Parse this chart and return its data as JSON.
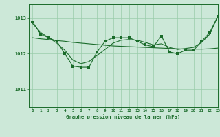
{
  "title": "Graphe pression niveau de la mer (hPa)",
  "background_color": "#cce8d8",
  "grid_color": "#99ccaa",
  "line_color": "#1a6b2a",
  "xlim": [
    -0.5,
    23
  ],
  "ylim": [
    1010.5,
    1013.4
  ],
  "yticks": [
    1011,
    1012,
    1013
  ],
  "xticks": [
    0,
    1,
    2,
    3,
    4,
    5,
    6,
    7,
    8,
    9,
    10,
    11,
    12,
    13,
    14,
    15,
    16,
    17,
    18,
    19,
    20,
    21,
    22,
    23
  ],
  "jagged": [
    1012.9,
    1012.55,
    1012.45,
    1012.35,
    1012.0,
    1011.65,
    1011.62,
    1011.62,
    1012.05,
    1012.35,
    1012.45,
    1012.45,
    1012.45,
    1012.35,
    1012.25,
    1012.2,
    1012.5,
    1012.05,
    1012.0,
    1012.1,
    1012.1,
    1012.35,
    1012.6,
    1013.05
  ],
  "smooth": [
    1012.85,
    1012.6,
    1012.45,
    1012.3,
    1012.1,
    1011.82,
    1011.72,
    1011.78,
    1011.95,
    1012.12,
    1012.3,
    1012.38,
    1012.4,
    1012.38,
    1012.32,
    1012.25,
    1012.28,
    1012.18,
    1012.12,
    1012.15,
    1012.18,
    1012.32,
    1012.55,
    1013.05
  ],
  "trend": [
    1012.45,
    1012.42,
    1012.4,
    1012.37,
    1012.35,
    1012.32,
    1012.3,
    1012.28,
    1012.26,
    1012.24,
    1012.22,
    1012.21,
    1012.2,
    1012.19,
    1012.18,
    1012.17,
    1012.16,
    1012.15,
    1012.14,
    1012.13,
    1012.13,
    1012.13,
    1012.14,
    1012.16
  ]
}
